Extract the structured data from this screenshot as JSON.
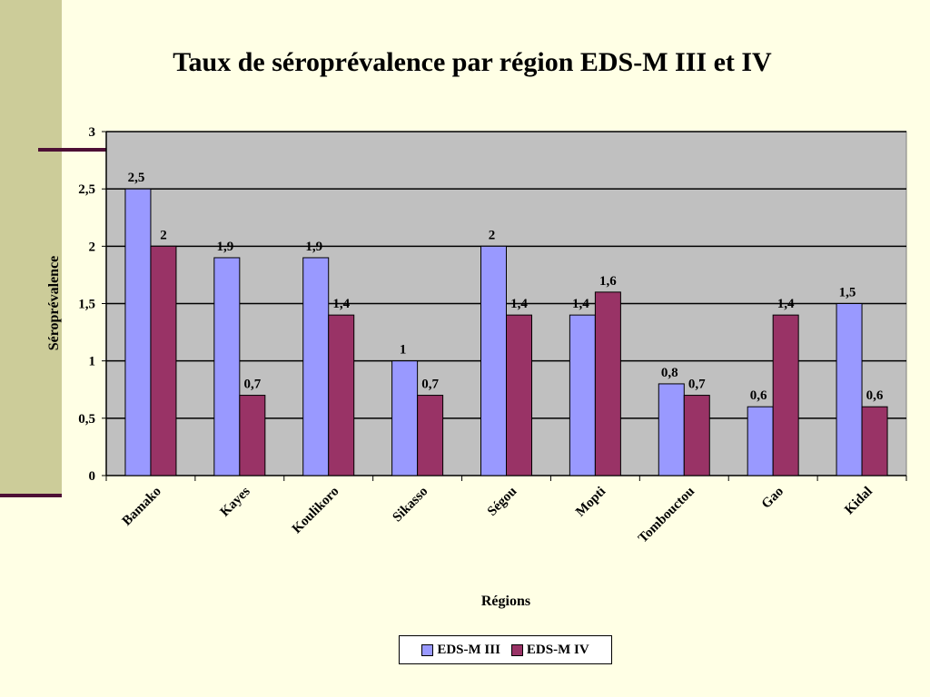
{
  "chart_data": {
    "type": "bar",
    "title": "Taux de séroprévalence par région EDS-M III et IV",
    "xlabel": "Régions",
    "ylabel": "Séroprévalence",
    "ylim": [
      0,
      3
    ],
    "yticks": [
      "0",
      "0,5",
      "1",
      "1,5",
      "2",
      "2,5",
      "3"
    ],
    "grid": true,
    "legend_position": "bottom",
    "categories": [
      "Bamako",
      "Kayes",
      "Koulikoro",
      "Sikasso",
      "Ségou",
      "Mopti",
      "Tombouctou",
      "Gao",
      "Kidal"
    ],
    "series": [
      {
        "name": "EDS-M III",
        "color": "#9999ff",
        "values": [
          2.5,
          1.9,
          1.9,
          1,
          2,
          1.4,
          0.8,
          0.6,
          1.5
        ],
        "labels": [
          "2,5",
          "1,9",
          "1,9",
          "1",
          "2",
          "1,4",
          "0,8",
          "0,6",
          "1,5"
        ]
      },
      {
        "name": "EDS-M IV",
        "color": "#993366",
        "values": [
          2,
          0.7,
          1.4,
          0.7,
          1.4,
          1.6,
          0.7,
          1.4,
          0.6
        ],
        "labels": [
          "2",
          "0,7",
          "1,4",
          "0,7",
          "1,4",
          "1,6",
          "0,7",
          "1,4",
          "0,6"
        ]
      }
    ],
    "plot_background": "#c0c0c0"
  }
}
